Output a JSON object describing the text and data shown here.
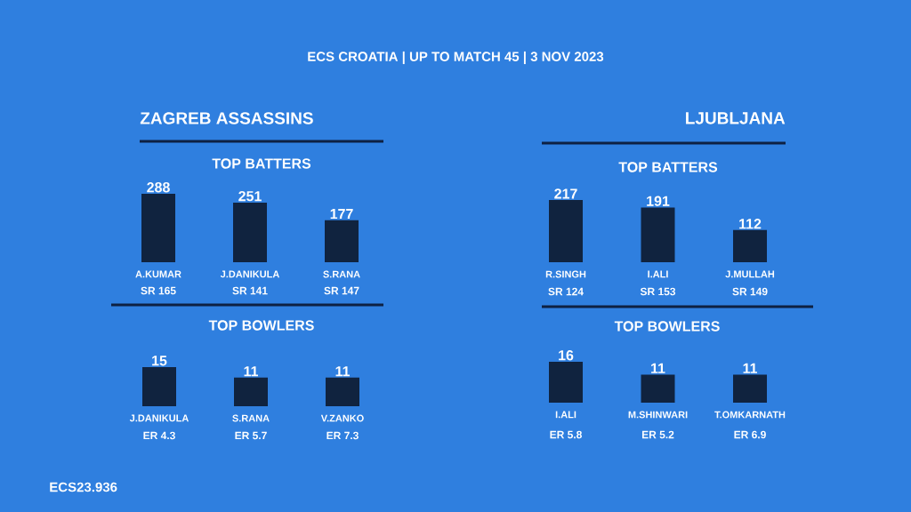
{
  "chart_data": [
    {
      "type": "other",
      "title": "ECS CROATIA | UP TO MATCH 45 | 3 NOV 2023",
      "annotations": [
        "ECS23.936"
      ]
    },
    {
      "type": "bar",
      "title": "ZAGREB ASSASSINS",
      "subtitle": "TOP BATTERS",
      "categories": [
        "A.KUMAR",
        "J.DANIKULA",
        "S.RANA"
      ],
      "values": [
        288,
        251,
        177
      ],
      "color": "#10233f",
      "data_labels": true,
      "tick_labels": "x",
      "annotations": [
        "SR 165",
        "SR 141",
        "SR 147"
      ]
    },
    {
      "type": "bar",
      "title": "LJUBLJANA",
      "subtitle": "TOP BATTERS",
      "categories": [
        "R.SINGH",
        "I.ALI",
        "J.MULLAH"
      ],
      "values": [
        217,
        191,
        112
      ],
      "color": "#10233f",
      "data_labels": true,
      "tick_labels": "x",
      "annotations": [
        "SR 124",
        "SR 153",
        "SR 149"
      ]
    },
    {
      "type": "bar",
      "title": "TOP BOWLERS",
      "categories": [
        "J.DANIKULA",
        "S.RANA",
        "V.ZANKO"
      ],
      "values": [
        15,
        11,
        11
      ],
      "color": "#10233f",
      "data_labels": true,
      "tick_labels": "x",
      "annotations": [
        "ER 4.3",
        "ER 5.7",
        "ER 7.3"
      ]
    },
    {
      "type": "bar",
      "title": "TOP BOWLERS",
      "categories": [
        "I.ALI",
        "M.SHINWARI",
        "T.OMKARNATH"
      ],
      "values": [
        16,
        11,
        11
      ],
      "color": "#10233f",
      "data_labels": true,
      "tick_labels": "x",
      "annotations": [
        "ER 5.8",
        "ER 5.2",
        "ER 6.9"
      ]
    }
  ]
}
